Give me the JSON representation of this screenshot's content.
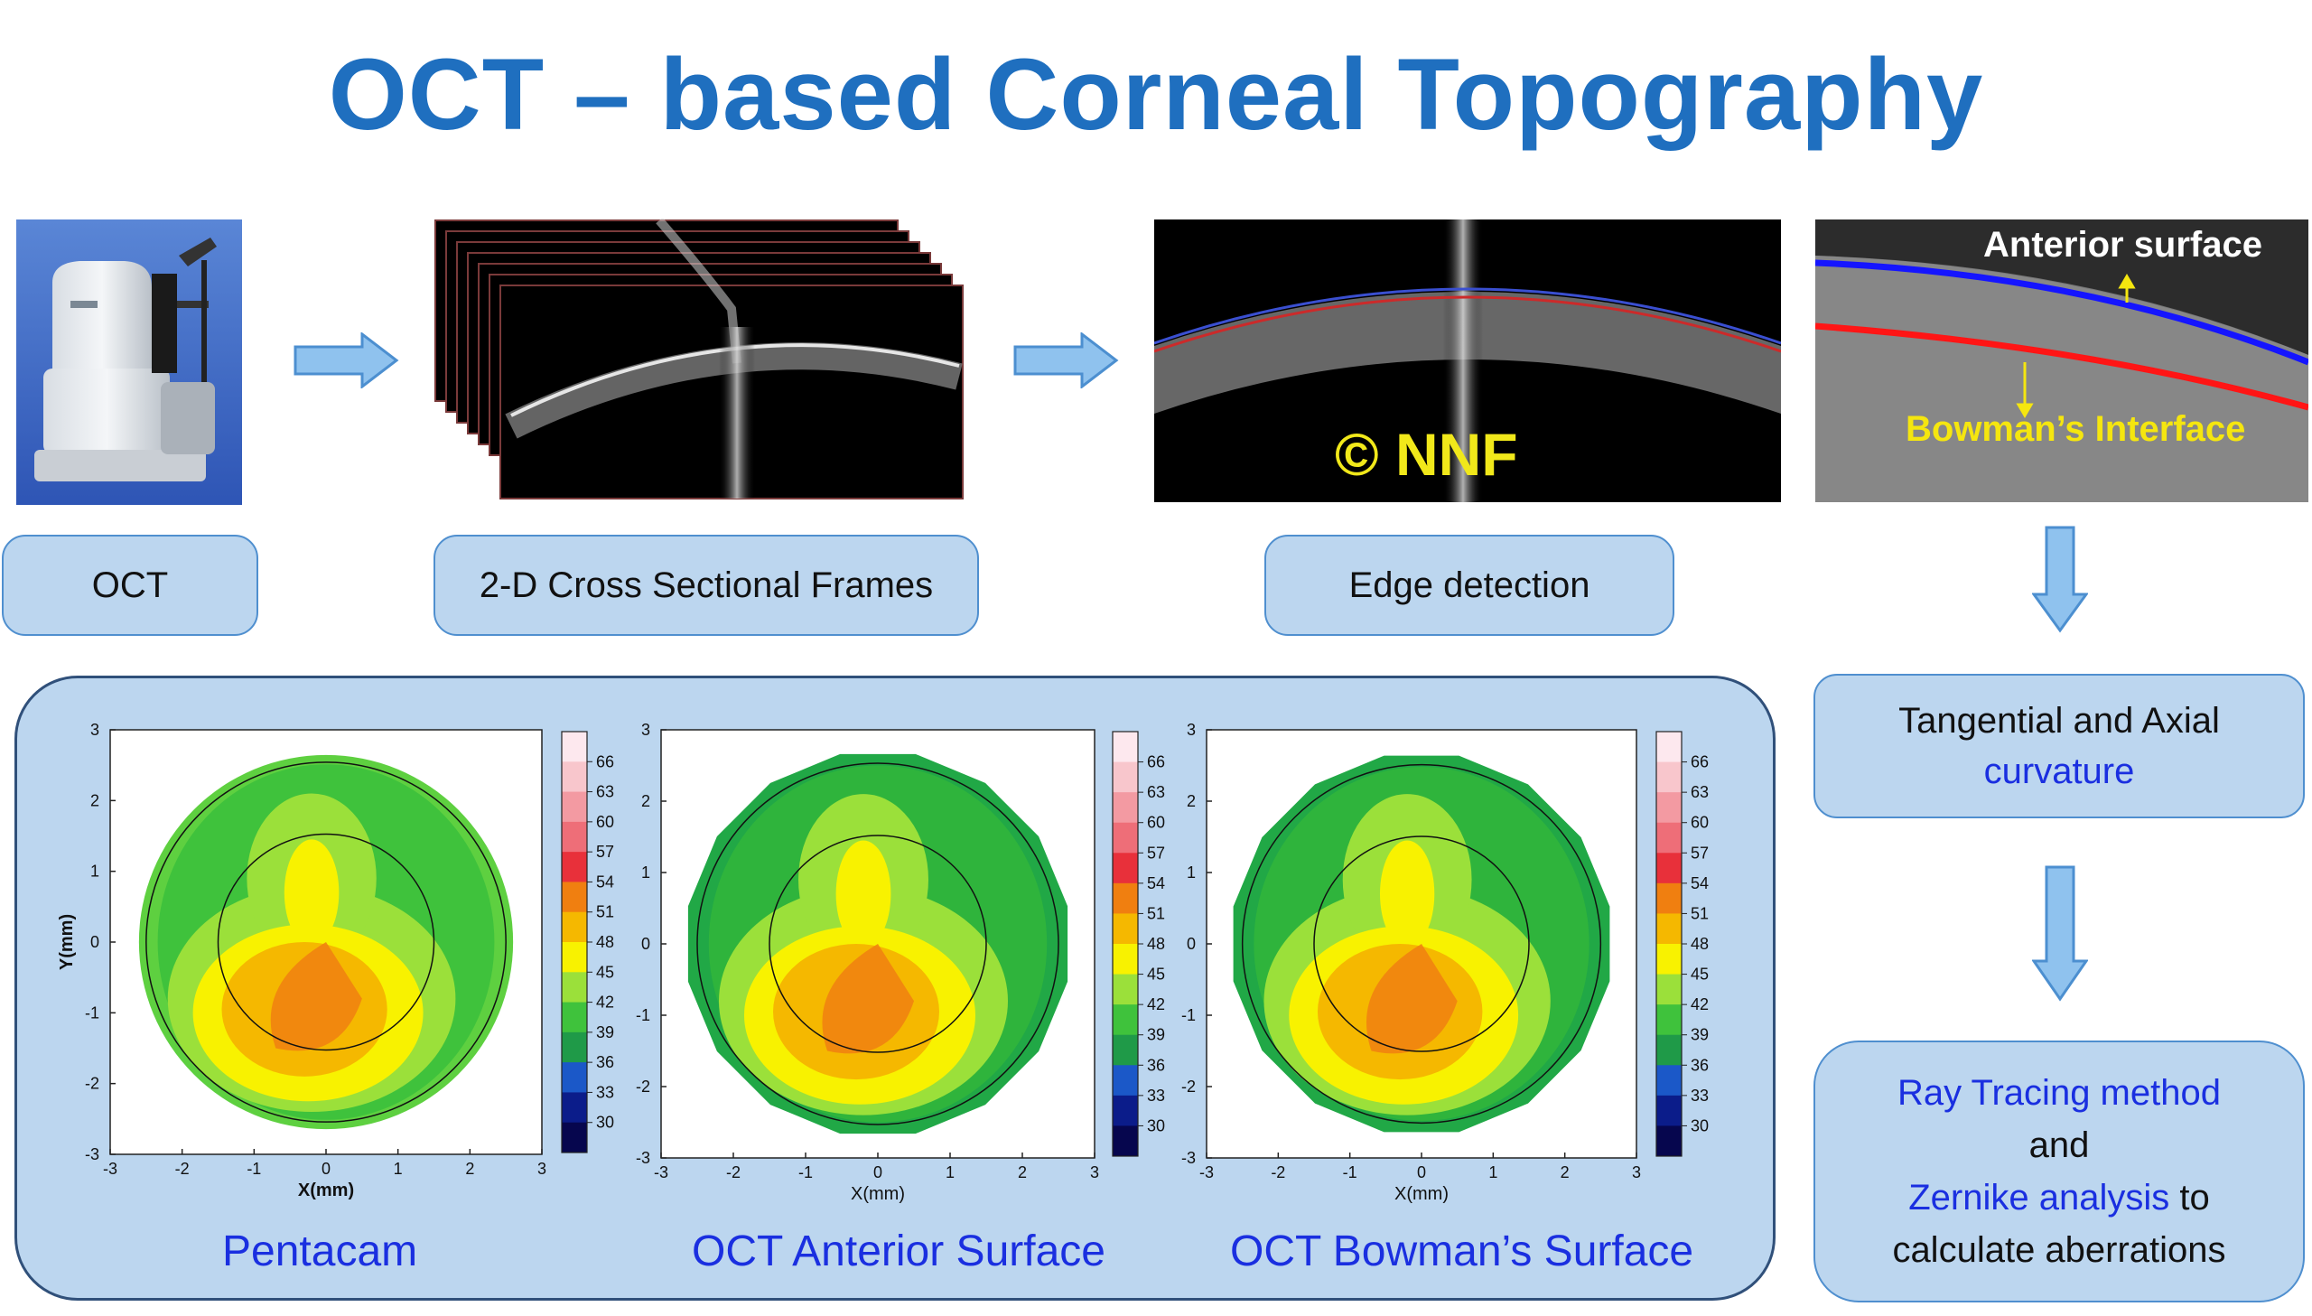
{
  "title": "OCT – based Corneal Topography",
  "pipeline": {
    "oct_label": "OCT",
    "frames_label": "2-D Cross Sectional Frames",
    "edge_label": "Edge detection",
    "copyright": "© NNF",
    "anterior_surface": "Anterior surface",
    "bowman_interface": "Bowman’s Interface"
  },
  "right_flow": {
    "curvature_line1": "Tangential and Axial",
    "curvature_line2": "curvature",
    "ray_tracing": "Ray Tracing method",
    "and": "and",
    "zernike": "Zernike analysis",
    "to": " to",
    "calculate": "calculate aberrations"
  },
  "maps": [
    {
      "name": "Pentacam",
      "xlabel": "X(mm)",
      "ylabel": "Y(mm)"
    },
    {
      "name": "OCT Anterior Surface",
      "xlabel": "X(mm)",
      "ylabel": ""
    },
    {
      "name": "OCT Bowman’s Surface",
      "xlabel": "X(mm)",
      "ylabel": ""
    }
  ],
  "axis_ticks": [
    "-3",
    "-2",
    "-1",
    "0",
    "1",
    "2",
    "3"
  ],
  "colorbar": {
    "labels": [
      "66",
      "63",
      "60",
      "57",
      "54",
      "51",
      "48",
      "45",
      "42",
      "39",
      "36",
      "33",
      "30"
    ],
    "colors": [
      "#fde8ee",
      "#f8c6cc",
      "#f39aa2",
      "#ee6e78",
      "#e8303a",
      "#f07f10",
      "#f5b800",
      "#f8f200",
      "#9be03a",
      "#3fc23c",
      "#1f9a48",
      "#1b58c8",
      "#0b1c8a",
      "#06064e"
    ]
  },
  "colors": {
    "title": "#1f6fbf",
    "accent": "#1a2fe0",
    "panel": "#bcd6ef",
    "arrow": "#8fc2ee"
  }
}
